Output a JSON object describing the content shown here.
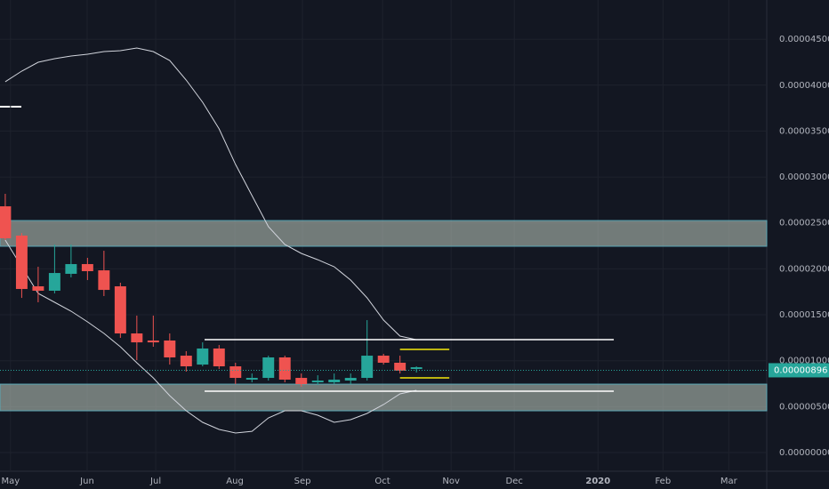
{
  "chart_data": {
    "type": "candlestick",
    "open": [
      2.681e-05,
      2.362e-05,
      1.81e-05,
      1.762e-05,
      1.946e-05,
      2.052e-05,
      1.984e-05,
      1.81e-05,
      1.297e-05,
      1.22e-05,
      1.22e-05,
      1.055e-05,
      9.58e-06,
      1.133e-05,
      9.39e-06,
      7.94e-06,
      8.13e-06,
      1.036e-05,
      8.13e-06,
      7.65e-06,
      7.65e-06,
      7.84e-06,
      8.13e-06,
      1.055e-05,
      9.78e-06,
      9.1e-06
    ],
    "high": [
      2.817e-05,
      2.39e-05,
      2.023e-05,
      2.265e-05,
      2.265e-05,
      2.12e-05,
      2.197e-05,
      1.849e-05,
      1.491e-05,
      1.491e-05,
      1.297e-05,
      1.104e-05,
      1.2e-05,
      1.171e-05,
      9.78e-06,
      8.61e-06,
      1.055e-05,
      1.055e-05,
      8.61e-06,
      8.42e-06,
      8.61e-06,
      8.61e-06,
      1.442e-05,
      1.075e-05,
      1.055e-05,
      9.39e-06
    ],
    "low": [
      2.314e-05,
      1.684e-05,
      1.636e-05,
      1.733e-05,
      1.907e-05,
      1.878e-05,
      1.704e-05,
      1.249e-05,
      1.007e-05,
      1.152e-05,
      9.58e-06,
      8.81e-06,
      9.39e-06,
      9.1e-06,
      7.45e-06,
      7.65e-06,
      7.84e-06,
      7.65e-06,
      7.16e-06,
      7.36e-06,
      7.45e-06,
      7.45e-06,
      7.84e-06,
      9.58e-06,
      8.61e-06,
      8.71e-06
    ],
    "close": [
      2.333e-05,
      1.781e-05,
      1.762e-05,
      1.955e-05,
      2.052e-05,
      1.975e-05,
      1.771e-05,
      1.297e-05,
      1.2e-05,
      1.2e-05,
      1.036e-05,
      9.39e-06,
      1.133e-05,
      9.39e-06,
      8.13e-06,
      8.13e-06,
      1.036e-05,
      7.94e-06,
      7.45e-06,
      7.84e-06,
      7.94e-06,
      8.13e-06,
      1.055e-05,
      9.78e-06,
      8.91e-06,
      9.29e-06
    ],
    "up_color": "#26a69a",
    "down_color": "#ef5350",
    "bands": [
      {
        "color": "#d1d4dc",
        "values": [
          4.037e-05,
          4.153e-05,
          4.249e-05,
          4.288e-05,
          4.317e-05,
          4.337e-05,
          4.366e-05,
          4.375e-05,
          4.404e-05,
          4.366e-05,
          4.269e-05,
          4.056e-05,
          3.814e-05,
          3.524e-05,
          3.137e-05,
          2.798e-05,
          2.459e-05,
          2.265e-05,
          2.168e-05,
          2.1e-05,
          2.023e-05,
          1.878e-05,
          1.684e-05,
          1.442e-05,
          1.268e-05,
          1.229e-05
        ]
      },
      {
        "color": "#d1d4dc",
        "values": [
          2.314e-05,
          2.023e-05,
          1.733e-05,
          1.636e-05,
          1.539e-05,
          1.423e-05,
          1.297e-05,
          1.152e-05,
          9.78e-06,
          8.13e-06,
          6.2e-06,
          4.55e-06,
          3.29e-06,
          2.52e-06,
          2.13e-06,
          2.32e-06,
          3.78e-06,
          4.55e-06,
          4.55e-06,
          4.07e-06,
          3.29e-06,
          3.58e-06,
          4.26e-06,
          5.23e-06,
          6.39e-06,
          6.78e-06
        ]
      }
    ],
    "zones": [
      [
        2.246e-05,
        2.526e-05
      ],
      [
        4.55e-06,
        7.45e-06
      ]
    ],
    "hlines": [
      {
        "value": 1.229e-05,
        "from": 12.12,
        "to": 37.0,
        "color": "#ffffff"
      },
      {
        "value": 6.68e-06,
        "from": 12.12,
        "to": 37.0,
        "color": "#ffffff"
      },
      {
        "value": 1.123e-05,
        "from": 24.0,
        "to": 27.0,
        "color": "#f5e90a"
      },
      {
        "value": 8.13e-06,
        "from": 24.0,
        "to": 27.0,
        "color": "#f5e90a"
      }
    ],
    "last_price": {
      "value": 8.96e-06,
      "label": "0.00000896"
    },
    "xlim": [
      -0.32,
      46.3
    ],
    "xticks": [
      {
        "value": 0.32,
        "label": "May"
      },
      {
        "value": 4.98,
        "label": "Jun"
      },
      {
        "value": 9.15,
        "label": "Jul"
      },
      {
        "value": 13.96,
        "label": "Aug"
      },
      {
        "value": 18.07,
        "label": "Sep"
      },
      {
        "value": 22.94,
        "label": "Oct"
      },
      {
        "value": 27.11,
        "label": "Nov"
      },
      {
        "value": 30.95,
        "label": "Dec"
      },
      {
        "value": 36.04,
        "label": "2020"
      },
      {
        "value": 39.99,
        "label": "Feb"
      },
      {
        "value": 43.99,
        "label": "Mar"
      }
    ],
    "ylim": [
      -2.03e-06,
      4.927e-05
    ],
    "yticks": [
      {
        "value": 0,
        "label": "0.00000000"
      },
      {
        "value": 5e-06,
        "label": "0.00000500"
      },
      {
        "value": 1e-05,
        "label": "0.00001000"
      },
      {
        "value": 1.5e-05,
        "label": "0.00001500"
      },
      {
        "value": 2e-05,
        "label": "0.00002000"
      },
      {
        "value": 2.5e-05,
        "label": "0.00002500"
      },
      {
        "value": 3e-05,
        "label": "0.00003000"
      },
      {
        "value": 3.5e-05,
        "label": "0.00003500"
      },
      {
        "value": 4e-05,
        "label": "0.00004000"
      },
      {
        "value": 4.5e-05,
        "label": "0.00004500"
      }
    ],
    "grid": true
  }
}
